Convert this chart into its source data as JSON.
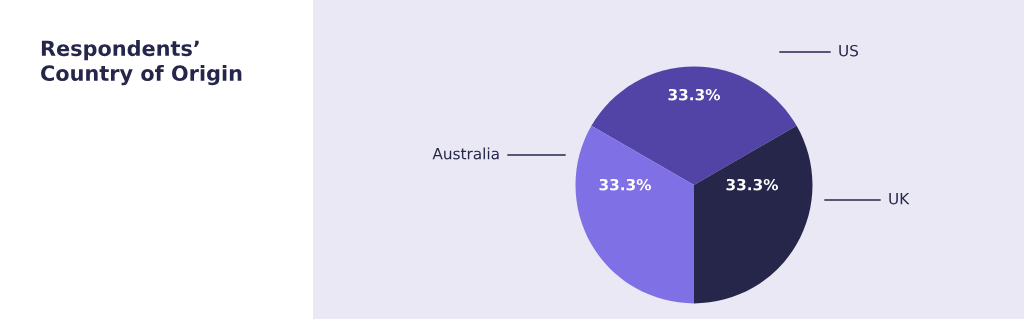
{
  "chart_data": {
    "type": "pie",
    "title": "Respondents’\nCountry of Origin",
    "categories": [
      "US",
      "Australia",
      "UK"
    ],
    "values": [
      33.3,
      33.3,
      33.3
    ],
    "value_labels": [
      "33.3%",
      "33.3%",
      "33.3%"
    ],
    "colors": [
      "#5243a6",
      "#8070e6",
      "#25264a"
    ]
  }
}
